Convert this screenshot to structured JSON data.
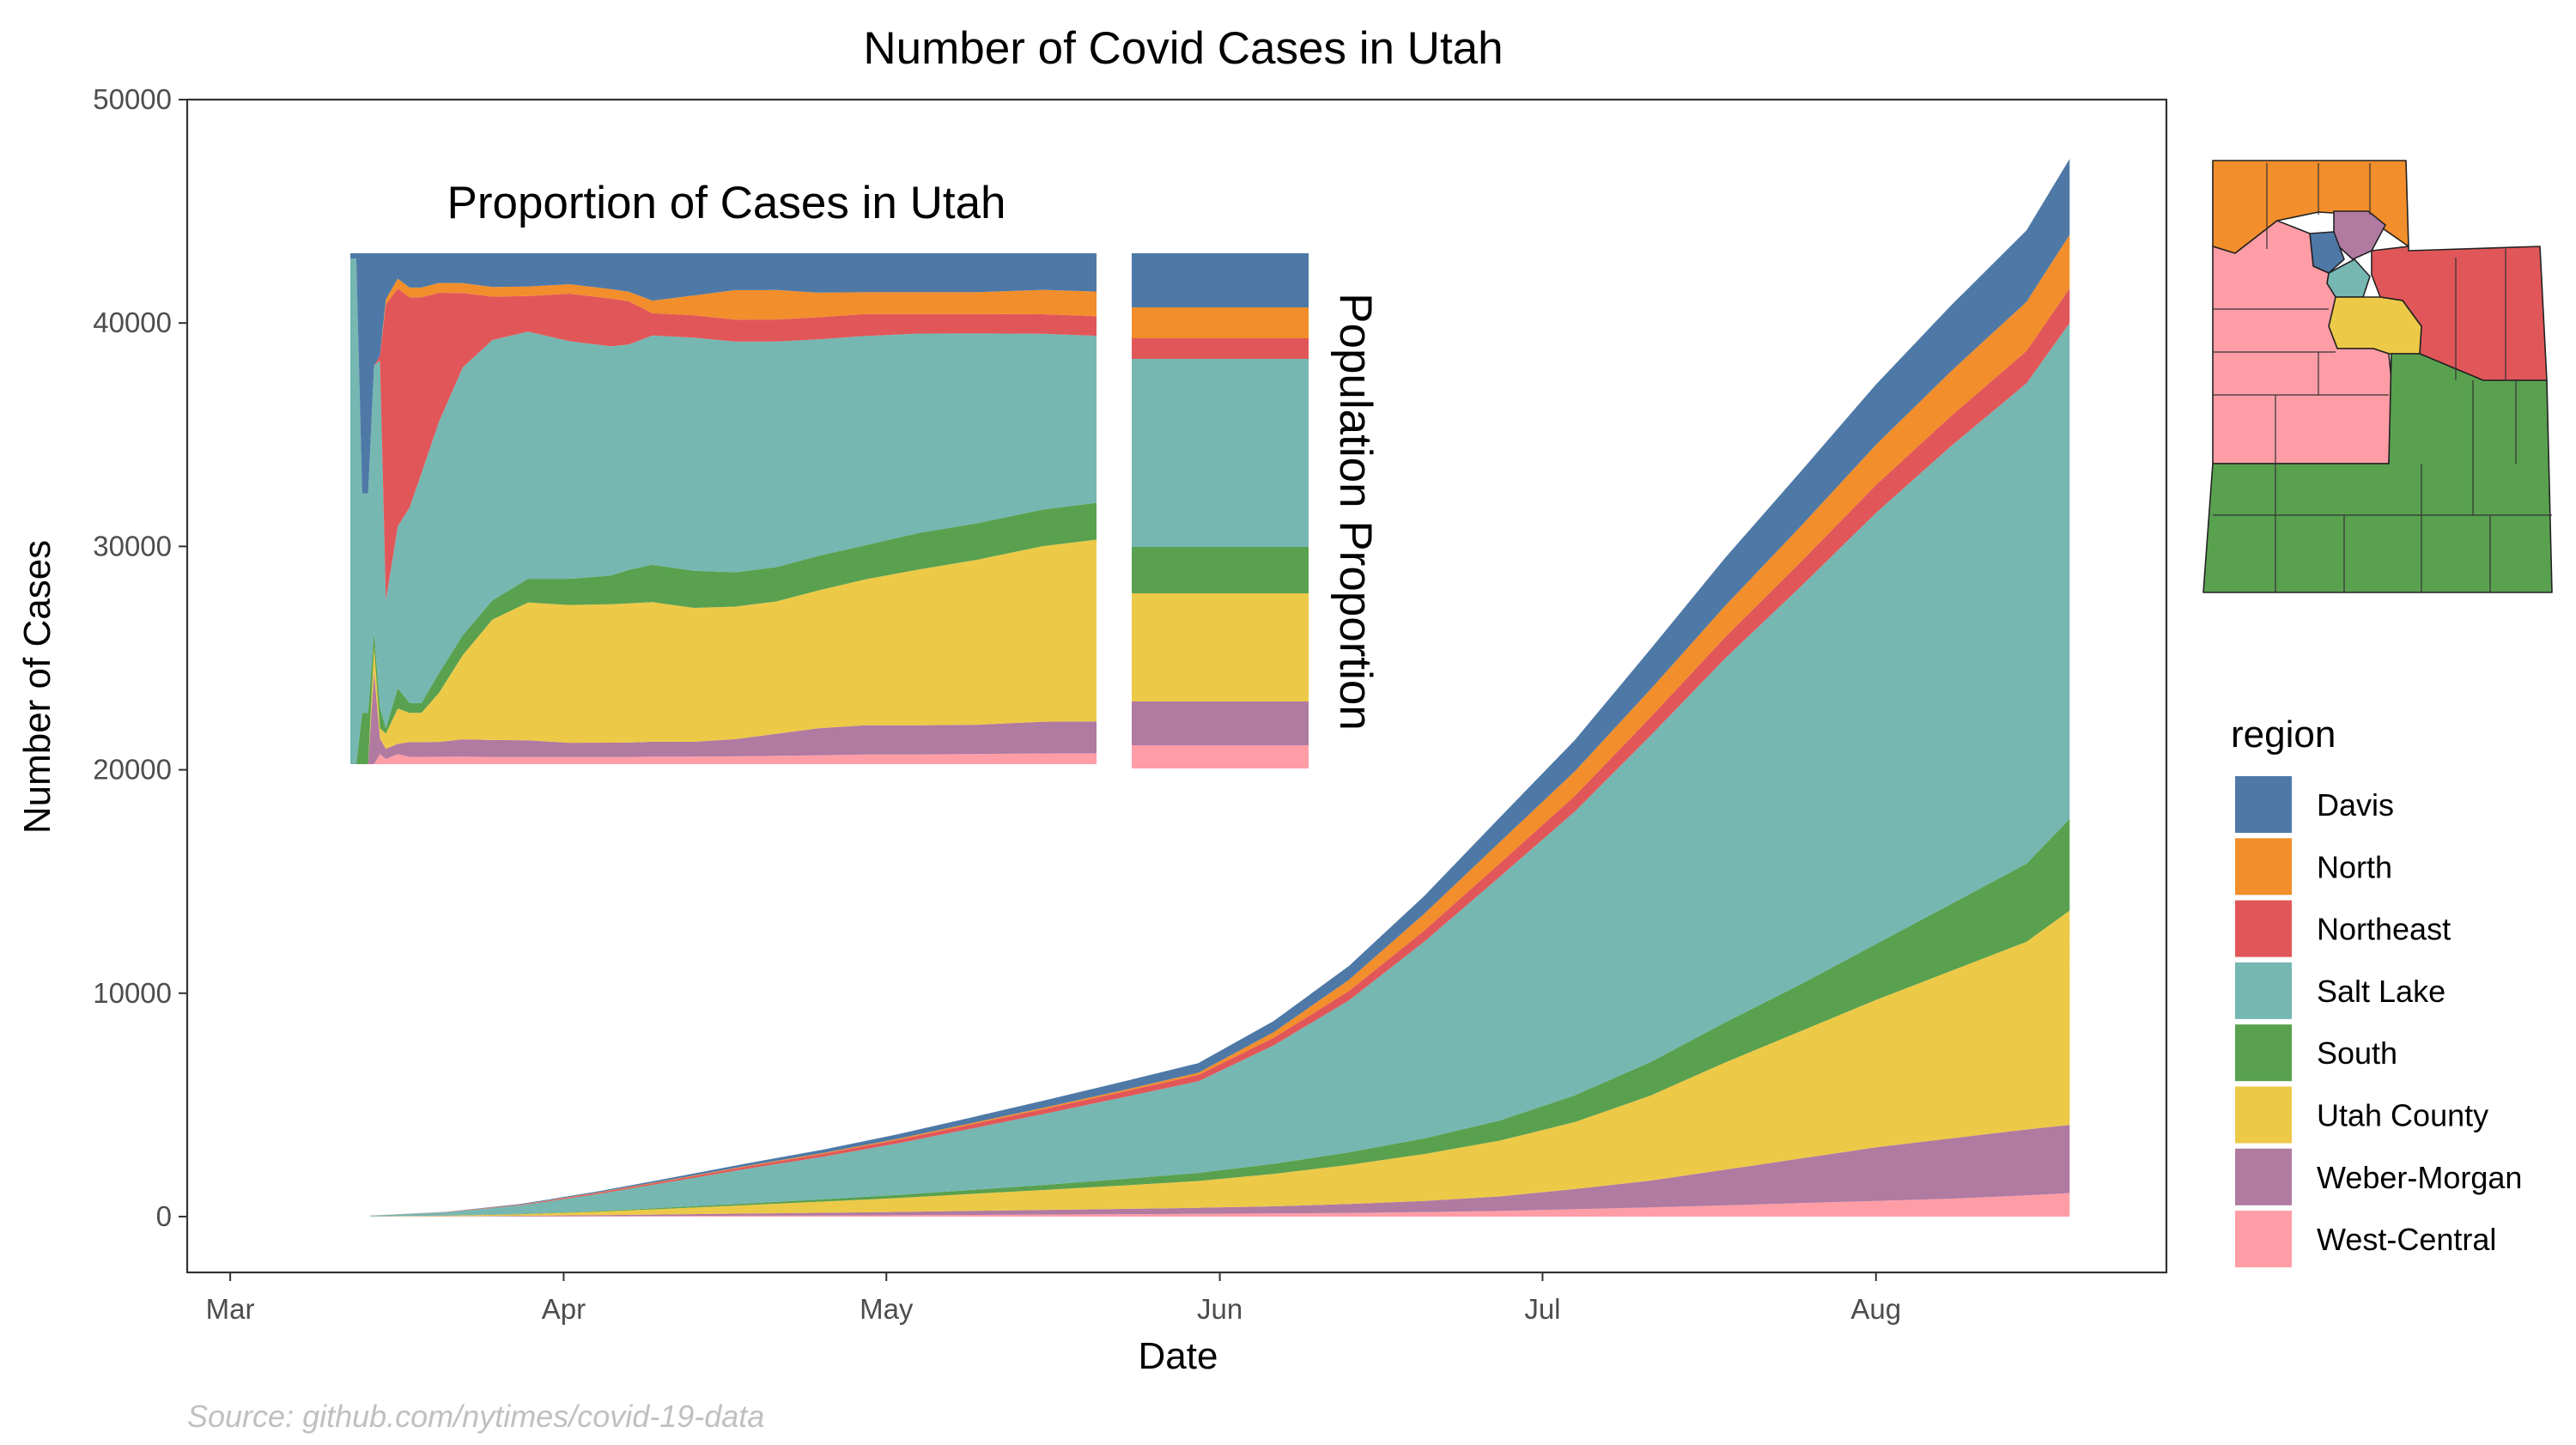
{
  "chart_data": {
    "type": "area",
    "stacked": true,
    "title": "Number of Covid Cases in Utah",
    "xlabel": "Date",
    "ylabel": "Number of Cases",
    "caption": "Source: github.com/nytimes/covid-19-data",
    "x_ticks": [
      "Mar",
      "Apr",
      "May",
      "Jun",
      "Jul",
      "Aug"
    ],
    "x_tick_dates": [
      "2020-03-01",
      "2020-04-01",
      "2020-05-01",
      "2020-06-01",
      "2020-07-01",
      "2020-08-01"
    ],
    "x_range": [
      "2020-02-26",
      "2020-08-28"
    ],
    "y_ticks": [
      "0",
      "10000",
      "20000",
      "30000",
      "40000",
      "50000"
    ],
    "y_tick_values": [
      0,
      10000,
      20000,
      30000,
      40000,
      50000
    ],
    "ylim": [
      -2500,
      50000
    ],
    "grid": false,
    "legend": {
      "title": "region",
      "placement": "right",
      "entries": [
        "Davis",
        "North",
        "Northeast",
        "Salt Lake",
        "South",
        "Utah County",
        "Weber-Morgan",
        "West-Central"
      ]
    },
    "colors": {
      "Davis": "#4e79a7",
      "North": "#f28e2b",
      "Northeast": "#e15759",
      "Salt Lake": "#76b7b2",
      "South": "#59a14f",
      "Utah County": "#edc948",
      "Weber-Morgan": "#b07aa1",
      "West-Central": "#ff9da7"
    },
    "x": [
      "2020-03-14",
      "2020-03-21",
      "2020-03-28",
      "2020-04-04",
      "2020-04-11",
      "2020-04-18",
      "2020-04-25",
      "2020-05-02",
      "2020-05-09",
      "2020-05-16",
      "2020-05-23",
      "2020-05-30",
      "2020-06-06",
      "2020-06-13",
      "2020-06-20",
      "2020-06-27",
      "2020-07-04",
      "2020-07-11",
      "2020-07-18",
      "2020-07-25",
      "2020-08-01",
      "2020-08-08",
      "2020-08-15",
      "2020-08-19"
    ],
    "series": [
      {
        "name": "West-Central",
        "values": [
          2,
          6,
          12,
          20,
          30,
          40,
          50,
          60,
          75,
          90,
          105,
          120,
          140,
          165,
          200,
          250,
          330,
          410,
          500,
          600,
          700,
          800,
          950,
          1050
        ]
      },
      {
        "name": "Weber-Morgan",
        "values": [
          3,
          10,
          25,
          45,
          70,
          95,
          120,
          150,
          180,
          210,
          240,
          275,
          320,
          400,
          500,
          650,
          900,
          1200,
          1600,
          2000,
          2400,
          2700,
          2950,
          3050
        ]
      },
      {
        "name": "Utah County",
        "values": [
          5,
          25,
          70,
          150,
          260,
          380,
          500,
          620,
          760,
          900,
          1050,
          1200,
          1450,
          1750,
          2100,
          2500,
          3000,
          3800,
          4800,
          5700,
          6600,
          7500,
          8400,
          9600
        ]
      },
      {
        "name": "South",
        "values": [
          1,
          5,
          15,
          30,
          50,
          70,
          100,
          140,
          180,
          230,
          290,
          360,
          450,
          560,
          700,
          900,
          1200,
          1500,
          1800,
          2100,
          2500,
          3000,
          3500,
          4100
        ]
      },
      {
        "name": "Salt Lake",
        "values": [
          30,
          140,
          380,
          750,
          1150,
          1550,
          1900,
          2300,
          2750,
          3200,
          3650,
          4100,
          5300,
          6800,
          8800,
          10900,
          12700,
          14600,
          16300,
          17800,
          19300,
          20500,
          21500,
          22200
        ]
      },
      {
        "name": "Northeast",
        "values": [
          1,
          8,
          25,
          50,
          70,
          100,
          130,
          160,
          190,
          220,
          250,
          285,
          340,
          420,
          500,
          600,
          700,
          820,
          950,
          1100,
          1250,
          1350,
          1450,
          1550
        ]
      },
      {
        "name": "North",
        "values": [
          1,
          4,
          10,
          18,
          25,
          32,
          38,
          45,
          55,
          65,
          75,
          100,
          250,
          500,
          750,
          950,
          1100,
          1250,
          1400,
          1600,
          1800,
          2000,
          2200,
          2400
        ]
      },
      {
        "name": "Davis",
        "values": [
          2,
          10,
          25,
          50,
          80,
          110,
          150,
          200,
          260,
          320,
          380,
          430,
          500,
          620,
          800,
          1100,
          1400,
          1800,
          2150,
          2450,
          2700,
          2950,
          3200,
          3400
        ]
      }
    ],
    "inset": {
      "title": "Proportion of Cases in Utah",
      "side_label": "Population Proportion",
      "type": "stacked-area-proportion",
      "x": [
        "2020-03-06",
        "2020-03-07",
        "2020-03-08",
        "2020-03-09",
        "2020-03-10",
        "2020-03-11",
        "2020-03-12",
        "2020-03-14",
        "2020-03-16",
        "2020-03-18",
        "2020-03-21",
        "2020-03-25",
        "2020-03-30",
        "2020-04-05",
        "2020-04-12",
        "2020-04-19",
        "2020-04-22",
        "2020-04-26",
        "2020-05-03",
        "2020-05-10",
        "2020-05-17",
        "2020-05-24",
        "2020-06-01",
        "2020-06-10",
        "2020-06-20",
        "2020-07-01",
        "2020-07-10"
      ],
      "series": [
        {
          "name": "West-Central",
          "values": [
            0,
            0,
            0,
            0,
            0,
            0.02,
            0.01,
            0.02,
            0.015,
            0.015,
            0.015,
            0.015,
            0.015,
            0.015,
            0.015,
            0.015,
            0.015,
            0.015,
            0.015,
            0.016,
            0.017,
            0.018,
            0.02,
            0.02,
            0.021,
            0.022,
            0.022
          ]
        },
        {
          "name": "Weber-Morgan",
          "values": [
            0,
            0,
            0,
            0,
            0.18,
            0.03,
            0.02,
            0.02,
            0.03,
            0.03,
            0.03,
            0.035,
            0.035,
            0.035,
            0.03,
            0.03,
            0.03,
            0.03,
            0.03,
            0.035,
            0.045,
            0.055,
            0.06,
            0.06,
            0.06,
            0.065,
            0.065
          ]
        },
        {
          "name": "Utah County",
          "values": [
            0,
            0,
            0,
            0,
            0.05,
            0.02,
            0.03,
            0.07,
            0.06,
            0.06,
            0.1,
            0.17,
            0.25,
            0.29,
            0.29,
            0.29,
            0.29,
            0.28,
            0.27,
            0.27,
            0.27,
            0.28,
            0.3,
            0.32,
            0.34,
            0.36,
            0.37
          ]
        },
        {
          "name": "South",
          "values": [
            0,
            0,
            0.1,
            0.1,
            0.03,
            0.04,
            0.01,
            0.04,
            0.02,
            0.02,
            0.04,
            0.04,
            0.04,
            0.05,
            0.055,
            0.06,
            0.07,
            0.075,
            0.075,
            0.07,
            0.07,
            0.07,
            0.07,
            0.075,
            0.075,
            0.075,
            0.075
          ]
        },
        {
          "name": "Salt Lake",
          "values": [
            0.99,
            0.99,
            0.43,
            0.43,
            0.52,
            0.68,
            0.25,
            0.32,
            0.4,
            0.47,
            0.51,
            0.54,
            0.54,
            0.52,
            0.5,
            0.48,
            0.47,
            0.46,
            0.47,
            0.47,
            0.46,
            0.44,
            0.43,
            0.41,
            0.39,
            0.36,
            0.34
          ]
        },
        {
          "name": "Northeast",
          "values": [
            0,
            0,
            0,
            0,
            0,
            0.01,
            0.58,
            0.47,
            0.43,
            0.36,
            0.26,
            0.15,
            0.09,
            0.075,
            0.1,
            0.1,
            0.09,
            0.045,
            0.045,
            0.045,
            0.045,
            0.045,
            0.045,
            0.04,
            0.04,
            0.04,
            0.04
          ]
        },
        {
          "name": "North",
          "values": [
            0,
            0,
            0,
            0,
            0,
            0,
            0.01,
            0.02,
            0.02,
            0.02,
            0.02,
            0.02,
            0.02,
            0.02,
            0.02,
            0.02,
            0.02,
            0.025,
            0.04,
            0.06,
            0.06,
            0.05,
            0.045,
            0.045,
            0.045,
            0.05,
            0.05
          ]
        },
        {
          "name": "Davis",
          "values": [
            0.01,
            0.01,
            0.47,
            0.47,
            0.22,
            0.2,
            0.09,
            0.05,
            0.07,
            0.07,
            0.06,
            0.06,
            0.07,
            0.07,
            0.065,
            0.075,
            0.08,
            0.095,
            0.085,
            0.075,
            0.075,
            0.08,
            0.08,
            0.08,
            0.08,
            0.075,
            0.078
          ]
        }
      ],
      "population_proportion": [
        {
          "name": "West-Central",
          "value": 0.045
        },
        {
          "name": "Weber-Morgan",
          "value": 0.085
        },
        {
          "name": "Utah County",
          "value": 0.21
        },
        {
          "name": "South",
          "value": 0.09
        },
        {
          "name": "Salt Lake",
          "value": 0.365
        },
        {
          "name": "Northeast",
          "value": 0.04
        },
        {
          "name": "North",
          "value": 0.06
        },
        {
          "name": "Davis",
          "value": 0.105
        }
      ]
    }
  }
}
